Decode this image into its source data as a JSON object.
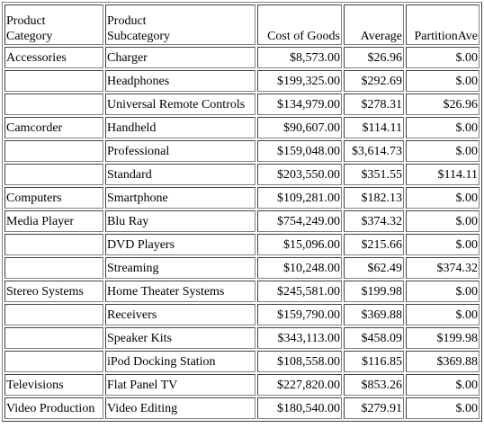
{
  "headers": {
    "category": "Product\nCategory",
    "subcategory": "Product\nSubcategory",
    "cost": "Cost of Goods",
    "average": "Average",
    "partition": "PartitionAve"
  },
  "rows": [
    {
      "category": "Accessories",
      "subcategory": "Charger",
      "cost": "$8,573.00",
      "average": "$26.96",
      "partition": "$.00"
    },
    {
      "category": "",
      "subcategory": "Headphones",
      "cost": "$199,325.00",
      "average": "$292.69",
      "partition": "$.00"
    },
    {
      "category": "",
      "subcategory": "Universal Remote Controls",
      "cost": "$134,979.00",
      "average": "$278.31",
      "partition": "$26.96"
    },
    {
      "category": "Camcorder",
      "subcategory": "Handheld",
      "cost": "$90,607.00",
      "average": "$114.11",
      "partition": "$.00"
    },
    {
      "category": "",
      "subcategory": "Professional",
      "cost": "$159,048.00",
      "average": "$3,614.73",
      "partition": "$.00"
    },
    {
      "category": "",
      "subcategory": "Standard",
      "cost": "$203,550.00",
      "average": "$351.55",
      "partition": "$114.11"
    },
    {
      "category": "Computers",
      "subcategory": "Smartphone",
      "cost": "$109,281.00",
      "average": "$182.13",
      "partition": "$.00"
    },
    {
      "category": "Media Player",
      "subcategory": "Blu Ray",
      "cost": "$754,249.00",
      "average": "$374.32",
      "partition": "$.00"
    },
    {
      "category": "",
      "subcategory": "DVD Players",
      "cost": "$15,096.00",
      "average": "$215.66",
      "partition": "$.00"
    },
    {
      "category": "",
      "subcategory": "Streaming",
      "cost": "$10,248.00",
      "average": "$62.49",
      "partition": "$374.32"
    },
    {
      "category": "Stereo Systems",
      "subcategory": "Home Theater Systems",
      "cost": "$245,581.00",
      "average": "$199.98",
      "partition": "$.00"
    },
    {
      "category": "",
      "subcategory": "Receivers",
      "cost": "$159,790.00",
      "average": "$369.88",
      "partition": "$.00"
    },
    {
      "category": "",
      "subcategory": "Speaker Kits",
      "cost": "$343,113.00",
      "average": "$458.09",
      "partition": "$199.98"
    },
    {
      "category": "",
      "subcategory": "iPod Docking Station",
      "cost": "$108,558.00",
      "average": "$116.85",
      "partition": "$369.88"
    },
    {
      "category": "Televisions",
      "subcategory": "Flat Panel TV",
      "cost": "$227,820.00",
      "average": "$853.26",
      "partition": "$.00"
    },
    {
      "category": "Video Production",
      "subcategory": "Video Editing",
      "cost": "$180,540.00",
      "average": "$279.91",
      "partition": "$.00"
    }
  ]
}
